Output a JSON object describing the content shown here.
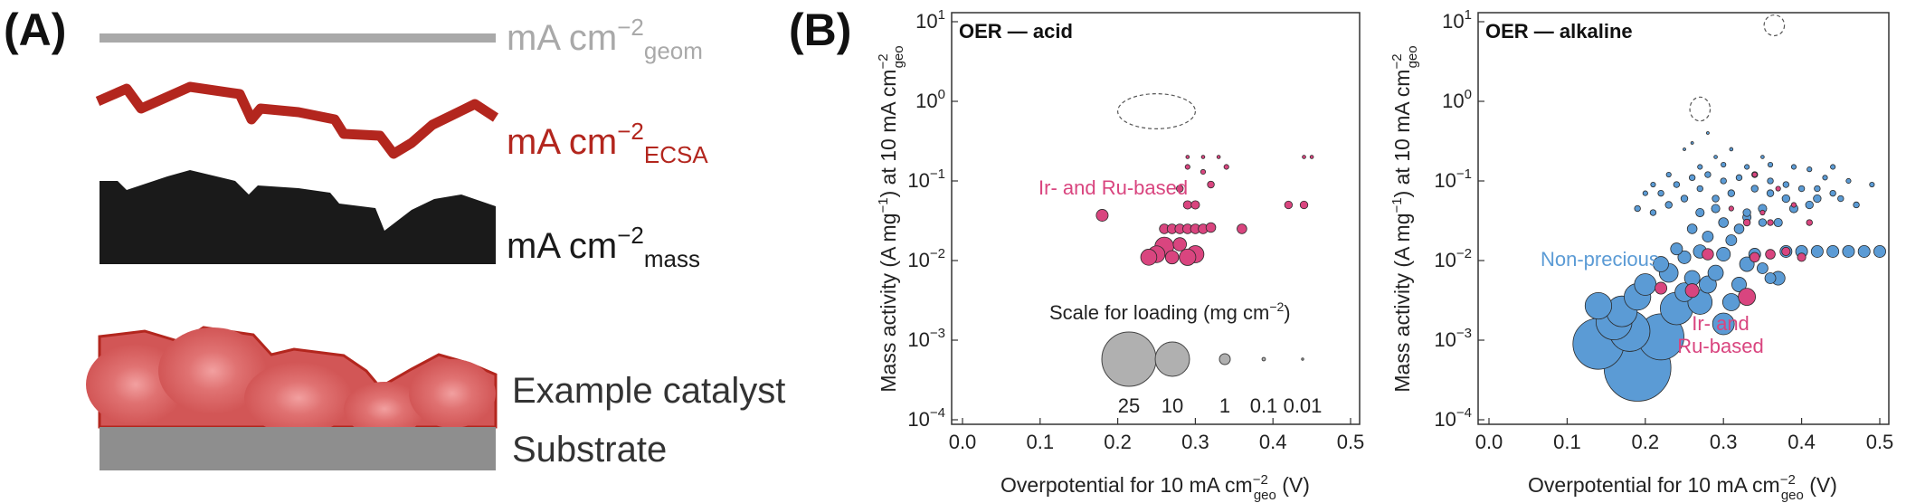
{
  "panel_a": {
    "label": "(A)",
    "geom": {
      "base": "mA cm",
      "sup": "−2",
      "sub": "geom",
      "color": "#a9a9a9"
    },
    "ecsa": {
      "base": "mA cm",
      "sup": "−2",
      "sub": "ECSA",
      "color": "#b3261e"
    },
    "mass": {
      "base": "mA cm",
      "sup": "−2",
      "sub": "mass",
      "color": "#1a1a1a"
    },
    "catalyst_label": "Example catalyst",
    "substrate_label": "Substrate",
    "catalyst_color": "#e06a6a",
    "substrate_color": "#8e8e8e"
  },
  "panel_b": {
    "label": "(B)"
  },
  "colors": {
    "acid_points": "#d9457f",
    "alkaline_points": "#5b9bd5"
  },
  "chart_data": [
    {
      "type": "scatter",
      "title": "OER — acid",
      "xlabel": "Overpotential for 10 mA cm",
      "xlabel_sup": "−2",
      "xlabel_sub": "geo",
      "xlabel_tail": " (V)",
      "ylabel": "Mass activity (A mg",
      "ylabel_sup1": "−1",
      "ylabel_mid": ") at 10 mA cm",
      "ylabel_sup2": "−2",
      "ylabel_sub": "geo",
      "xlim": [
        0,
        0.5
      ],
      "ylim": [
        0.0001,
        10
      ],
      "yscale": "log",
      "xticks": [
        "0.0",
        "0.1",
        "0.2",
        "0.3",
        "0.4",
        "0.5"
      ],
      "yticks": [
        {
          "base": "10",
          "exp": "1"
        },
        {
          "base": "10",
          "exp": "0"
        },
        {
          "base": "10",
          "exp": "−1"
        },
        {
          "base": "10",
          "exp": "−2"
        },
        {
          "base": "10",
          "exp": "−3"
        },
        {
          "base": "10",
          "exp": "−4"
        }
      ],
      "annotations": [
        {
          "text": "Ir- and Ru-based",
          "color": "#d9457f"
        }
      ],
      "loading_scale": {
        "title": "Scale for loading (mg cm",
        "title_sup": "−2",
        "title_tail": ")",
        "labels": [
          "25",
          "10",
          "1",
          "0.1",
          "0.01"
        ],
        "loadings": [
          25,
          10,
          1,
          0.1,
          0.01
        ]
      },
      "series": [
        {
          "color": "#d9457f",
          "points": [
            [
              0.18,
              0.037,
              1.2
            ],
            [
              0.24,
              0.011,
              2.2
            ],
            [
              0.25,
              0.012,
              2.4
            ],
            [
              0.26,
              0.015,
              3.0
            ],
            [
              0.27,
              0.011,
              1.5
            ],
            [
              0.28,
              0.016,
              1.5
            ],
            [
              0.29,
              0.011,
              2.3
            ],
            [
              0.3,
              0.012,
              2.5
            ],
            [
              0.26,
              0.025,
              0.8
            ],
            [
              0.27,
              0.025,
              0.8
            ],
            [
              0.28,
              0.025,
              0.8
            ],
            [
              0.29,
              0.025,
              0.8
            ],
            [
              0.3,
              0.025,
              0.8
            ],
            [
              0.31,
              0.025,
              0.8
            ],
            [
              0.32,
              0.026,
              0.8
            ],
            [
              0.29,
              0.05,
              0.6
            ],
            [
              0.3,
              0.05,
              0.6
            ],
            [
              0.36,
              0.025,
              0.8
            ],
            [
              0.28,
              0.08,
              0.4
            ],
            [
              0.32,
              0.09,
              0.4
            ],
            [
              0.29,
              0.15,
              0.2
            ],
            [
              0.31,
              0.2,
              0.1
            ],
            [
              0.33,
              0.2,
              0.1
            ],
            [
              0.34,
              0.15,
              0.2
            ],
            [
              0.44,
              0.2,
              0.1
            ],
            [
              0.45,
              0.2,
              0.1
            ],
            [
              0.42,
              0.05,
              0.5
            ],
            [
              0.44,
              0.05,
              0.5
            ],
            [
              0.31,
              0.13,
              0.2
            ],
            [
              0.29,
              0.2,
              0.1
            ]
          ]
        }
      ],
      "dashed_outlines": [
        {
          "cx": 0.25,
          "cy": 0.75,
          "rx": 0.05,
          "ry_decades": 0.22
        }
      ]
    },
    {
      "type": "scatter",
      "title": "OER — alkaline",
      "xlabel": "Overpotential for 10 mA cm",
      "xlabel_sup": "−2",
      "xlabel_sub": "geo",
      "xlabel_tail": " (V)",
      "ylabel": "Mass activity (A mg",
      "ylabel_sup1": "−1",
      "ylabel_mid": ") at 10 mA cm",
      "ylabel_sup2": "−2",
      "ylabel_sub": "geo",
      "xlim": [
        0,
        0.5
      ],
      "ylim": [
        0.0001,
        10
      ],
      "yscale": "log",
      "xticks": [
        "0.0",
        "0.1",
        "0.2",
        "0.3",
        "0.4",
        "0.5"
      ],
      "yticks": [
        {
          "base": "10",
          "exp": "1"
        },
        {
          "base": "10",
          "exp": "0"
        },
        {
          "base": "10",
          "exp": "−1"
        },
        {
          "base": "10",
          "exp": "−2"
        },
        {
          "base": "10",
          "exp": "−3"
        },
        {
          "base": "10",
          "exp": "−4"
        }
      ],
      "annotations": [
        {
          "text": "Non-precious",
          "color": "#5b9bd5"
        },
        {
          "text": "Ir- and",
          "color": "#d9457f"
        },
        {
          "text": "Ru-based",
          "color": "#d9457f"
        }
      ],
      "series": [
        {
          "color": "#5b9bd5",
          "points": [
            [
              0.19,
              0.00045,
              38
            ],
            [
              0.14,
              0.0009,
              22
            ],
            [
              0.22,
              0.0011,
              18
            ],
            [
              0.18,
              0.0013,
              14
            ],
            [
              0.16,
              0.0017,
              11
            ],
            [
              0.24,
              0.0025,
              9
            ],
            [
              0.17,
              0.0023,
              8
            ],
            [
              0.14,
              0.0027,
              6
            ],
            [
              0.19,
              0.0035,
              6
            ],
            [
              0.27,
              0.003,
              5
            ],
            [
              0.3,
              0.0016,
              4
            ],
            [
              0.2,
              0.005,
              4
            ],
            [
              0.23,
              0.007,
              3
            ],
            [
              0.25,
              0.004,
              3
            ],
            [
              0.28,
              0.005,
              2.5
            ],
            [
              0.31,
              0.003,
              2.5
            ],
            [
              0.26,
              0.006,
              2
            ],
            [
              0.22,
              0.009,
              2
            ],
            [
              0.29,
              0.007,
              2
            ],
            [
              0.32,
              0.005,
              1.8
            ],
            [
              0.33,
              0.009,
              1.8
            ],
            [
              0.3,
              0.012,
              1.6
            ],
            [
              0.27,
              0.013,
              1.5
            ],
            [
              0.25,
              0.011,
              1.4
            ],
            [
              0.24,
              0.014,
              1.2
            ],
            [
              0.34,
              0.012,
              1.2
            ],
            [
              0.35,
              0.008,
              1
            ],
            [
              0.36,
              0.006,
              1
            ],
            [
              0.31,
              0.018,
              1
            ],
            [
              0.28,
              0.02,
              1
            ],
            [
              0.32,
              0.025,
              0.8
            ],
            [
              0.3,
              0.03,
              0.8
            ],
            [
              0.26,
              0.025,
              0.8
            ],
            [
              0.27,
              0.04,
              0.6
            ],
            [
              0.29,
              0.045,
              0.6
            ],
            [
              0.33,
              0.035,
              0.6
            ],
            [
              0.35,
              0.045,
              0.6
            ],
            [
              0.37,
              0.03,
              0.6
            ],
            [
              0.39,
              0.045,
              0.6
            ],
            [
              0.41,
              0.05,
              0.5
            ],
            [
              0.42,
              0.06,
              0.5
            ],
            [
              0.38,
              0.06,
              0.5
            ],
            [
              0.36,
              0.07,
              0.4
            ],
            [
              0.34,
              0.08,
              0.4
            ],
            [
              0.31,
              0.07,
              0.4
            ],
            [
              0.29,
              0.06,
              0.4
            ],
            [
              0.27,
              0.08,
              0.3
            ],
            [
              0.25,
              0.06,
              0.4
            ],
            [
              0.23,
              0.05,
              0.4
            ],
            [
              0.21,
              0.04,
              0.3
            ],
            [
              0.19,
              0.045,
              0.3
            ],
            [
              0.22,
              0.07,
              0.3
            ],
            [
              0.24,
              0.09,
              0.3
            ],
            [
              0.26,
              0.11,
              0.3
            ],
            [
              0.28,
              0.12,
              0.3
            ],
            [
              0.3,
              0.1,
              0.3
            ],
            [
              0.32,
              0.11,
              0.3
            ],
            [
              0.34,
              0.12,
              0.3
            ],
            [
              0.36,
              0.1,
              0.3
            ],
            [
              0.38,
              0.09,
              0.3
            ],
            [
              0.4,
              0.08,
              0.3
            ],
            [
              0.42,
              0.08,
              0.3
            ],
            [
              0.44,
              0.07,
              0.3
            ],
            [
              0.27,
              0.15,
              0.2
            ],
            [
              0.3,
              0.16,
              0.2
            ],
            [
              0.33,
              0.15,
              0.2
            ],
            [
              0.36,
              0.16,
              0.2
            ],
            [
              0.39,
              0.15,
              0.2
            ],
            [
              0.41,
              0.14,
              0.2
            ],
            [
              0.44,
              0.15,
              0.2
            ],
            [
              0.43,
              0.11,
              0.2
            ],
            [
              0.23,
              0.12,
              0.2
            ],
            [
              0.21,
              0.09,
              0.2
            ],
            [
              0.2,
              0.07,
              0.2
            ],
            [
              0.29,
              0.2,
              0.1
            ],
            [
              0.31,
              0.25,
              0.1
            ],
            [
              0.35,
              0.2,
              0.1
            ],
            [
              0.26,
              0.3,
              0.05
            ],
            [
              0.25,
              0.25,
              0.05
            ],
            [
              0.28,
              0.4,
              0.05
            ],
            [
              0.49,
              0.09,
              0.2
            ],
            [
              0.46,
              0.1,
              0.2
            ],
            [
              0.45,
              0.06,
              0.3
            ],
            [
              0.47,
              0.05,
              0.3
            ],
            [
              0.38,
              0.013,
              1.2
            ],
            [
              0.4,
              0.013,
              1.2
            ],
            [
              0.42,
              0.013,
              1.2
            ],
            [
              0.44,
              0.013,
              1.2
            ],
            [
              0.46,
              0.013,
              1.2
            ],
            [
              0.48,
              0.013,
              1.2
            ],
            [
              0.5,
              0.013,
              1.2
            ],
            [
              0.37,
              0.006,
              1.6
            ],
            [
              0.33,
              0.04,
              0.5
            ],
            [
              0.35,
              0.03,
              0.5
            ]
          ]
        },
        {
          "color": "#d9457f",
          "points": [
            [
              0.33,
              0.0035,
              2.5
            ],
            [
              0.26,
              0.0042,
              1.6
            ],
            [
              0.22,
              0.0045,
              1.2
            ],
            [
              0.28,
              0.012,
              1.1
            ],
            [
              0.34,
              0.011,
              0.8
            ],
            [
              0.36,
              0.012,
              0.8
            ],
            [
              0.38,
              0.013,
              0.6
            ],
            [
              0.4,
              0.011,
              0.6
            ],
            [
              0.33,
              0.03,
              0.4
            ],
            [
              0.36,
              0.03,
              0.3
            ],
            [
              0.39,
              0.05,
              0.2
            ],
            [
              0.41,
              0.03,
              0.3
            ],
            [
              0.37,
              0.08,
              0.2
            ],
            [
              0.34,
              0.12,
              0.2
            ],
            [
              0.35,
              0.04,
              0.2
            ],
            [
              0.31,
              0.045,
              0.2
            ]
          ]
        }
      ],
      "dashed_outlines": [
        {
          "cx": 0.27,
          "cy": 0.8,
          "rx": 0.013,
          "ry_decades": 0.15
        },
        {
          "cx": 0.365,
          "cy": 9,
          "rx": 0.013,
          "ry_decades": 0.13
        }
      ]
    }
  ]
}
